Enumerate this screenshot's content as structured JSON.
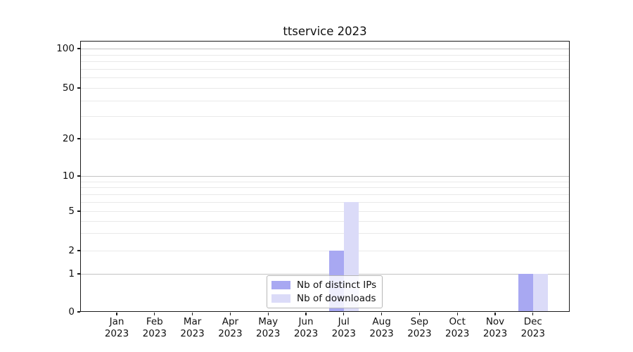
{
  "chart_data": {
    "type": "bar",
    "title": "ttservice 2023",
    "categories": [
      "Jan",
      "Feb",
      "Mar",
      "Apr",
      "May",
      "Jun",
      "Jul",
      "Aug",
      "Sep",
      "Oct",
      "Nov",
      "Dec"
    ],
    "year": "2023",
    "series": [
      {
        "name": "Nb of distinct IPs",
        "color": "#a8a8f2",
        "values": [
          0,
          0,
          0,
          0,
          0,
          0,
          2,
          0,
          0,
          0,
          0,
          1
        ]
      },
      {
        "name": "Nb of downloads",
        "color": "#dbdbf8",
        "values": [
          0,
          0,
          0,
          0,
          0,
          0,
          6,
          0,
          0,
          0,
          0,
          1
        ]
      }
    ],
    "xlabel": "",
    "ylabel": "",
    "y_axis": {
      "scale": "symlog",
      "ticks": [
        0,
        1,
        2,
        5,
        10,
        20,
        50,
        100
      ],
      "range": [
        0,
        110
      ],
      "major_gridlines": [
        1,
        10,
        100
      ],
      "minor_gridlines": [
        2,
        3,
        4,
        5,
        6,
        7,
        8,
        9,
        20,
        30,
        40,
        50,
        60,
        70,
        80,
        90
      ]
    },
    "legend": {
      "position": "bottom-center",
      "entries": [
        "Nb of distinct IPs",
        "Nb of downloads"
      ]
    },
    "grid": true
  }
}
